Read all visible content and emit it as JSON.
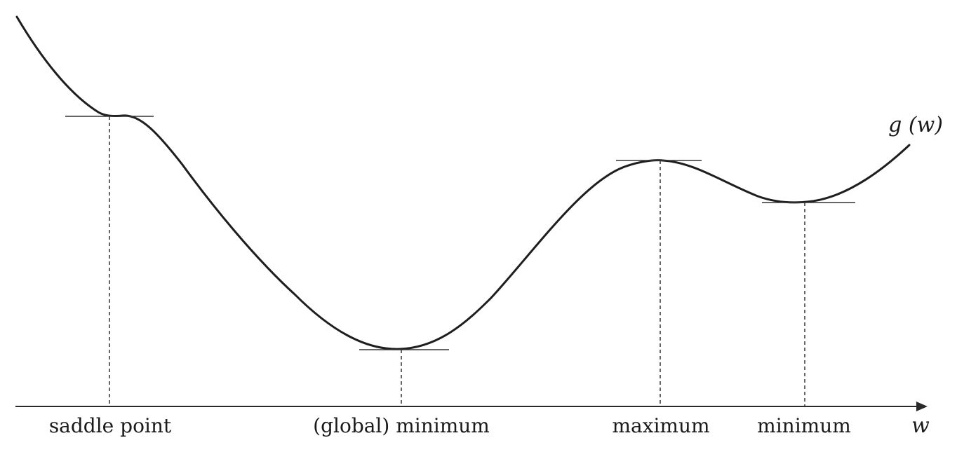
{
  "diagram": {
    "curve_label": "g (w)",
    "axis_label": "w",
    "critical_points": [
      {
        "label": "saddle point"
      },
      {
        "label": "(global) minimum"
      },
      {
        "label": "maximum"
      },
      {
        "label": "minimum"
      }
    ]
  }
}
